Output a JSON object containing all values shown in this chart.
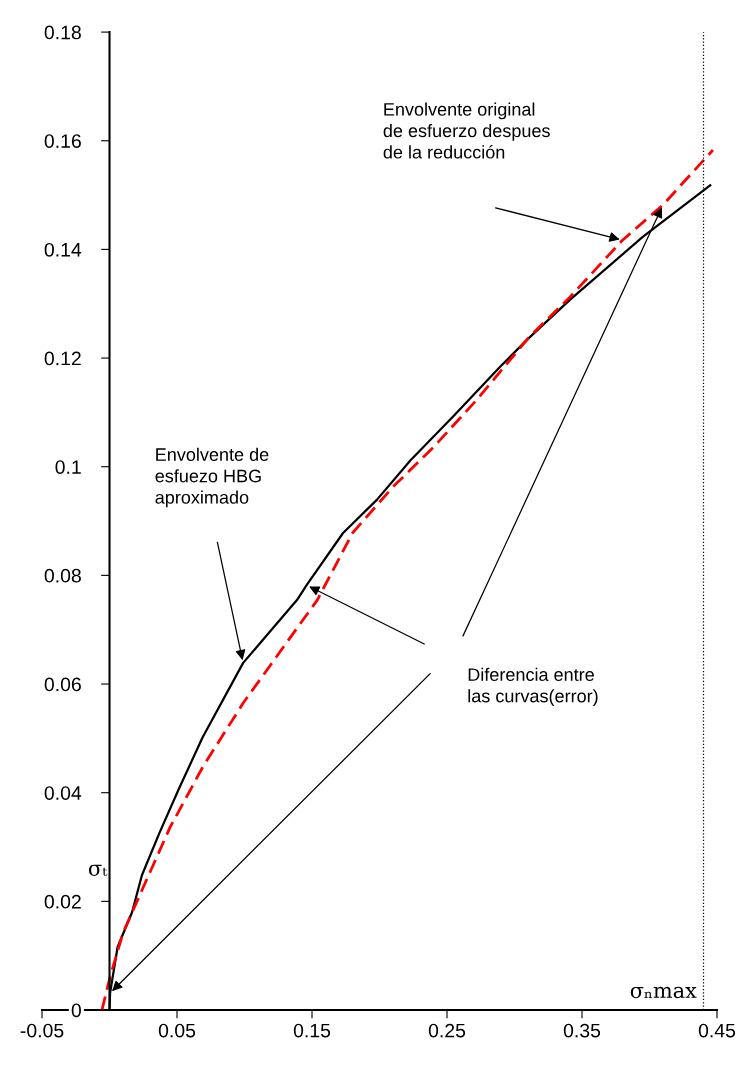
{
  "chart_data": {
    "type": "line",
    "ylabel": "σₜ",
    "xlim": [
      -0.05,
      0.45
    ],
    "xticks": [
      -0.05,
      0.05,
      0.15,
      0.25,
      0.35,
      0.45
    ],
    "ylim": [
      0,
      0.18
    ],
    "yticks": [
      0,
      0.02,
      0.04,
      0.06,
      0.08,
      0.1,
      0.12,
      0.14,
      0.16,
      0.18
    ],
    "grid": false,
    "legend": false,
    "marker": "none",
    "series": [
      {
        "color": "#000000",
        "line_style": "solid",
        "x": [
          0.0,
          0.0004,
          0.006,
          0.0167,
          0.024,
          0.037,
          0.051,
          0.069,
          0.099,
          0.139,
          0.146,
          0.173,
          0.198,
          0.223,
          0.254,
          0.289,
          0.309,
          0.341,
          0.395,
          0.445
        ],
        "values": [
          0.0,
          0.0031,
          0.0116,
          0.018,
          0.0248,
          0.0326,
          0.0405,
          0.0502,
          0.0639,
          0.0755,
          0.0782,
          0.0878,
          0.0939,
          0.1012,
          0.1091,
          0.1183,
          0.1233,
          0.1307,
          0.1423,
          0.1518
        ]
      },
      {
        "color": "#ff0000",
        "line_style": "dashed",
        "x": [
          -0.0056,
          0.0004,
          0.01,
          0.025,
          0.045,
          0.069,
          0.099,
          0.154,
          0.18,
          0.21,
          0.24,
          0.272,
          0.311,
          0.341,
          0.38,
          0.41,
          0.447
        ],
        "values": [
          0.0,
          0.0061,
          0.0142,
          0.0226,
          0.0337,
          0.0447,
          0.0565,
          0.0755,
          0.0878,
          0.0963,
          0.1036,
          0.1123,
          0.1239,
          0.1312,
          0.1417,
          0.1482,
          0.1583
        ]
      }
    ],
    "ref_lines": [
      {
        "axis": "x",
        "value": 0.44,
        "label": "σₙmax",
        "color": "#000000",
        "line_style": "dotted"
      }
    ],
    "annotations": [
      "Envolvente original\nde esfuerzo despues\nde la reducción",
      "Envolvente de\nesfuezo HBG\naproximado",
      "Diferencia entre\nlas curvas(error)"
    ]
  }
}
